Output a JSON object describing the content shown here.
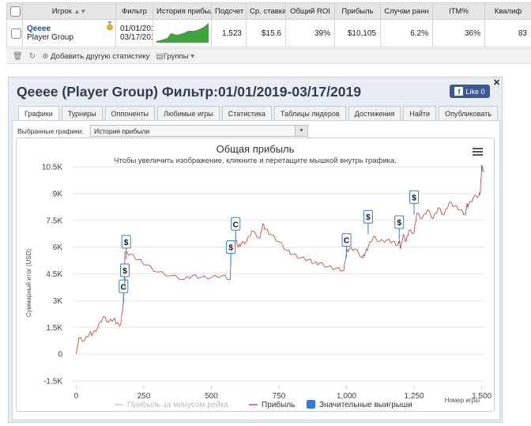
{
  "table": {
    "headers": [
      "",
      "Игрок",
      "Фильтр",
      "История прибыл",
      "Подсчет",
      "Ср. ставка",
      "Общий ROI",
      "Прибыль",
      "Случаи ранн",
      "ITM%",
      "Квалиф"
    ],
    "row": {
      "player_name": "Qeeee",
      "player_group": "Player Group",
      "filter_from": "01/01/201",
      "filter_to": "03/17/201",
      "count": "1,523",
      "avg_stake": "$15.6",
      "roi": "39%",
      "profit": "$10,105",
      "early": "6.2%",
      "itm": "36%",
      "qual": "83"
    }
  },
  "toolbar": {
    "add_stats": "Добавить другую статистику",
    "groups": "Группы"
  },
  "panel": {
    "title": "Qeeee (Player Group) Фильтр:01/01/2019-03/17/2019",
    "fb_like": "Like 0",
    "tabs": [
      "Графики",
      "Турниры",
      "Оппоненты",
      "Любимые игры",
      "Статистика",
      "Таблицы лидеров",
      "Достижения",
      "Найти",
      "Опубликовать"
    ],
    "select_label": "Выбранные графики:",
    "select_value": "История прибыли"
  },
  "chart_data": {
    "type": "line",
    "title": "Общая прибыль",
    "subtitle": "Чтобы увеличить изображение, кликните и перетащите мышкой внутрь графика.",
    "ylabel": "Суммарный итог (USD)",
    "xlabel": "Номер игры",
    "ylim": [
      -1500,
      10500
    ],
    "xlim": [
      -10,
      1510
    ],
    "y_ticks": [
      "10.5K",
      "9K",
      "7.5K",
      "6K",
      "4.5K",
      "3K",
      "1.5K",
      "0",
      "-1.5K"
    ],
    "y_tick_values": [
      10500,
      9000,
      7500,
      6000,
      4500,
      3000,
      1500,
      0,
      -1500
    ],
    "x_ticks": [
      "0",
      "250",
      "500",
      "750",
      "1,000",
      "1,250",
      "1,500"
    ],
    "x_tick_values": [
      0,
      250,
      500,
      750,
      1000,
      1250,
      1500
    ],
    "legend": [
      "Прибыль за минусом рейка",
      "Прибыль",
      "Значительные выигрыши"
    ],
    "legend_position": "bottom",
    "series_color": "#c0504d",
    "grid": true,
    "series": [
      {
        "name": "Прибыль",
        "x": [
          0,
          10,
          30,
          50,
          60,
          80,
          100,
          120,
          140,
          150,
          165,
          175,
          178,
          180,
          200,
          230,
          260,
          300,
          350,
          400,
          430,
          460,
          500,
          540,
          570,
          572,
          575,
          590,
          600,
          610,
          630,
          650,
          680,
          690,
          700,
          720,
          750,
          780,
          800,
          830,
          860,
          880,
          900,
          930,
          960,
          990,
          1000,
          1010,
          1030,
          1060,
          1070,
          1080,
          1100,
          1120,
          1150,
          1170,
          1190,
          1195,
          1200,
          1210,
          1220,
          1230,
          1250,
          1260,
          1280,
          1300,
          1320,
          1340,
          1360,
          1380,
          1400,
          1420,
          1440,
          1445,
          1450,
          1470,
          1490,
          1495,
          1500,
          1510
        ],
        "y": [
          0,
          900,
          750,
          1200,
          1100,
          1500,
          2100,
          1800,
          2000,
          1700,
          1650,
          3000,
          3850,
          5700,
          5600,
          5300,
          5000,
          4600,
          4400,
          4200,
          4400,
          4300,
          4300,
          4400,
          4200,
          5500,
          6200,
          6400,
          6000,
          6200,
          6300,
          6900,
          6500,
          7300,
          7000,
          6700,
          6300,
          5800,
          5600,
          5400,
          5300,
          5100,
          5100,
          4900,
          4800,
          4700,
          5700,
          5900,
          5900,
          5400,
          5700,
          6000,
          6600,
          6300,
          6400,
          6300,
          6100,
          6400,
          5900,
          6700,
          6300,
          6900,
          6800,
          7900,
          7600,
          8100,
          7600,
          8200,
          7800,
          8500,
          8300,
          8100,
          7800,
          8400,
          8300,
          8800,
          8900,
          9100,
          10500,
          10200
        ]
      }
    ],
    "big_wins": [
      {
        "x": 175,
        "y": 3800,
        "label": "C"
      },
      {
        "x": 180,
        "y": 4700,
        "label": "$"
      },
      {
        "x": 185,
        "y": 6300,
        "label": "$"
      },
      {
        "x": 572,
        "y": 6000,
        "label": "$"
      },
      {
        "x": 590,
        "y": 7300,
        "label": "C"
      },
      {
        "x": 1000,
        "y": 6400,
        "label": "C"
      },
      {
        "x": 1080,
        "y": 7700,
        "label": "$"
      },
      {
        "x": 1195,
        "y": 7400,
        "label": "$"
      },
      {
        "x": 1250,
        "y": 8800,
        "label": "$"
      }
    ]
  }
}
